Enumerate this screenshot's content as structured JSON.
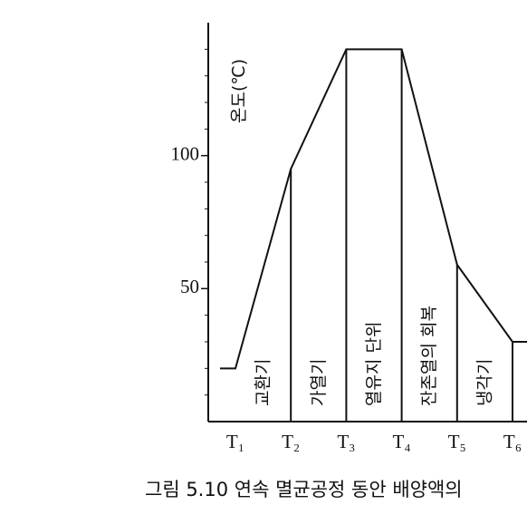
{
  "chart_data": {
    "type": "line",
    "y_label": "온도(℃)",
    "categories": [
      null,
      "T₁",
      "T₂",
      "T₃",
      "T₄",
      "T₅",
      "T₆",
      null
    ],
    "values": [
      20,
      20,
      95,
      140,
      140,
      59,
      30,
      30
    ],
    "color": "#111111",
    "ylim": [
      0,
      150
    ],
    "yticks": [
      50,
      100
    ],
    "yminorticks": [
      10,
      20,
      30,
      40,
      60,
      70,
      80,
      90,
      110,
      120,
      130,
      140
    ],
    "region_labels": [
      "교환기",
      "가열기",
      "열유지 단위",
      "잔존열의 회복",
      "냉각기"
    ],
    "caption": "그림 5.10 연속 멸균공정 동안 배양액의"
  }
}
